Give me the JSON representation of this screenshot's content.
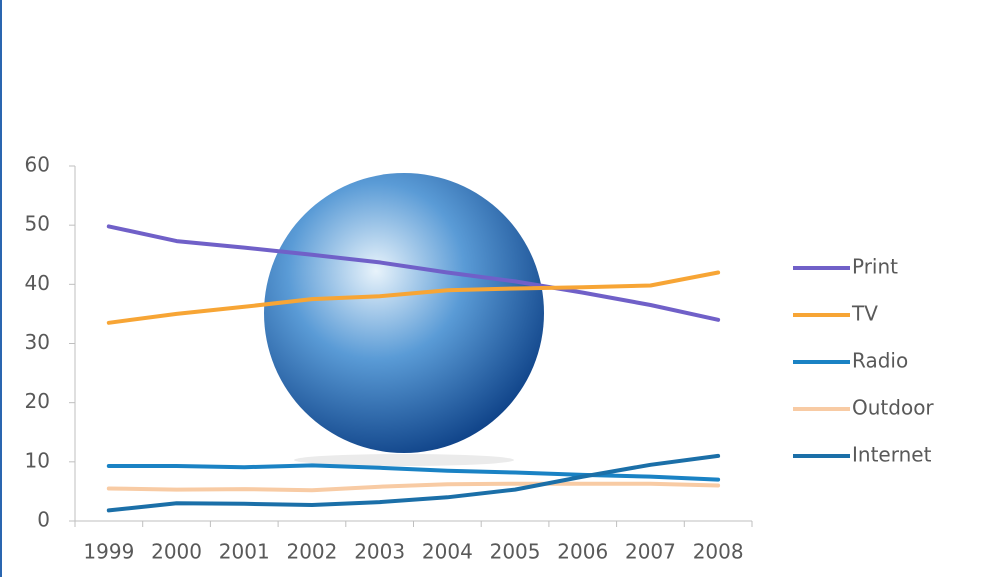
{
  "chart_data": {
    "type": "line",
    "categories": [
      "1999",
      "2000",
      "2001",
      "2002",
      "2003",
      "2004",
      "2005",
      "2006",
      "2007",
      "2008"
    ],
    "series": [
      {
        "name": "Print",
        "color": "#7060c8",
        "values": [
          49.8,
          47.3,
          46.2,
          45,
          43.7,
          42,
          40.5,
          38.6,
          36.5,
          34
        ]
      },
      {
        "name": "TV",
        "color": "#f7a535",
        "values": [
          33.5,
          35,
          36.2,
          37.5,
          38,
          39,
          39.3,
          39.5,
          39.8,
          42
        ]
      },
      {
        "name": "Radio",
        "color": "#1a82c4",
        "values": [
          9.3,
          9.3,
          9.1,
          9.4,
          9,
          8.5,
          8.2,
          7.8,
          7.5,
          7
        ]
      },
      {
        "name": "Outdoor",
        "color": "#f8cba4",
        "values": [
          5.5,
          5.3,
          5.4,
          5.2,
          5.8,
          6.2,
          6.3,
          6.3,
          6.3,
          6
        ]
      },
      {
        "name": "Internet",
        "color": "#1b6fa8",
        "values": [
          1.8,
          3,
          2.9,
          2.7,
          3.2,
          4,
          5.3,
          7.5,
          9.5,
          11
        ]
      }
    ],
    "ylim": [
      0,
      60
    ],
    "yticks": [
      0,
      10,
      20,
      30,
      40,
      50,
      60
    ],
    "legend": "right"
  }
}
